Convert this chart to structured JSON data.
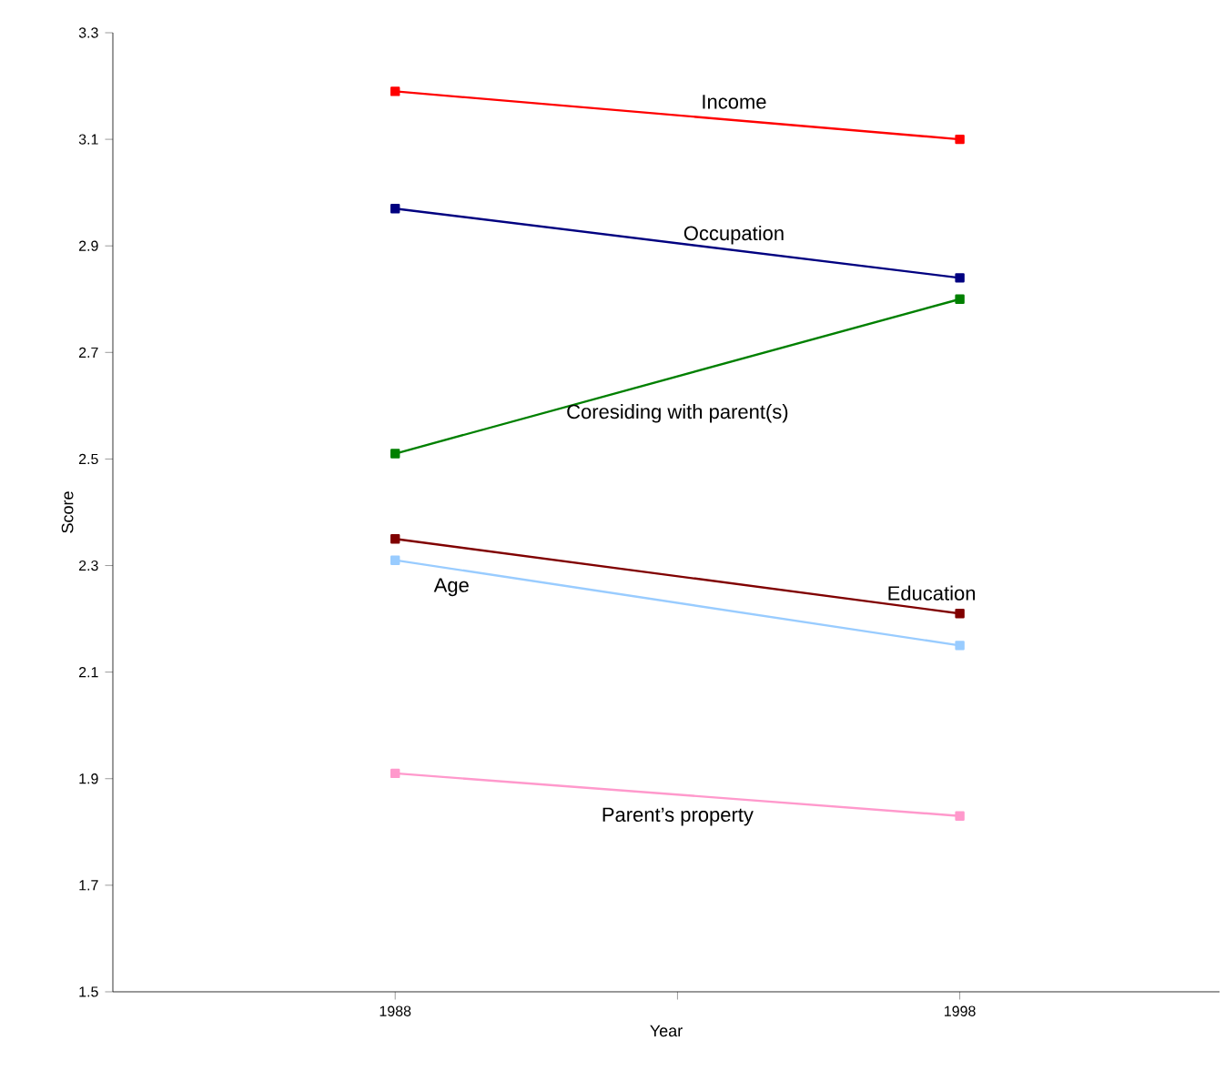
{
  "chart_data": {
    "type": "line",
    "xlabel": "Year",
    "ylabel": "Score",
    "x": [
      1988,
      1998
    ],
    "series": [
      {
        "name": "Income",
        "color": "#ff0000",
        "values": [
          3.19,
          3.1
        ]
      },
      {
        "name": "Occupation",
        "color": "#000080",
        "values": [
          2.97,
          2.84
        ]
      },
      {
        "name": "Coresiding with parent(s)",
        "color": "#008000",
        "values": [
          2.51,
          2.8
        ]
      },
      {
        "name": "Education",
        "color": "#800000",
        "values": [
          2.35,
          2.21
        ]
      },
      {
        "name": "Age",
        "color": "#99ccff",
        "values": [
          2.31,
          2.15
        ]
      },
      {
        "name": "Parent’s property",
        "color": "#ff99cc",
        "values": [
          1.91,
          1.83
        ]
      }
    ],
    "xlim": [
      1983,
      2002.6
    ],
    "xticks": [
      1988,
      {
        "value": 1993,
        "label": null
      },
      1998
    ],
    "ylim": [
      1.5,
      3.3
    ],
    "yticks": [
      {
        "value": 1.5,
        "label": "1.5"
      },
      1.7,
      1.9,
      2.1,
      2.3,
      2.5,
      2.7,
      2.9,
      3.1,
      3.3
    ],
    "grid": false,
    "marker": "square",
    "line_style": "solid"
  }
}
